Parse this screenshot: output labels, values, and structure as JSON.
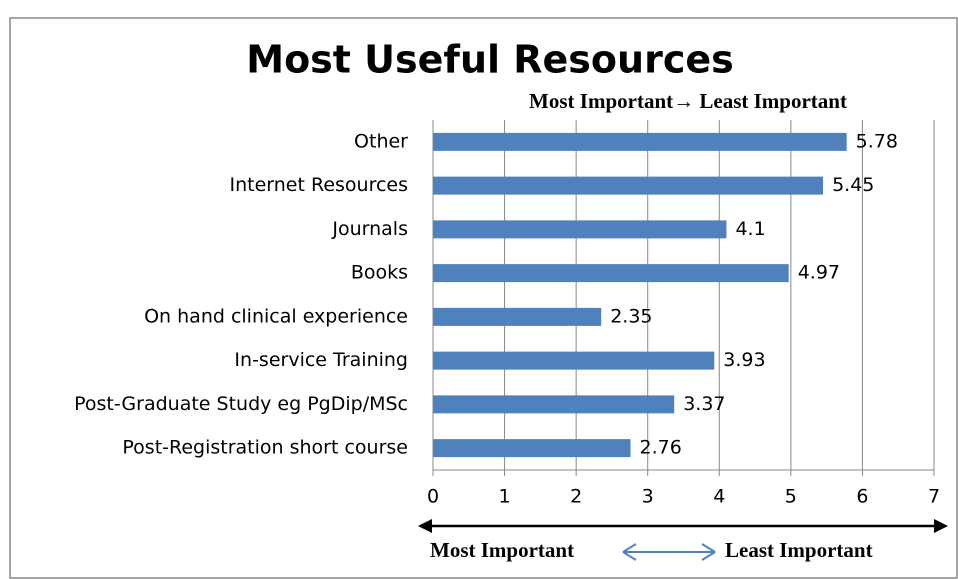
{
  "chart_data": {
    "type": "bar",
    "orientation": "horizontal",
    "title": "Most Useful Resources",
    "subtitle": "Most Important→ Least Important",
    "categories": [
      "Other",
      "Internet Resources",
      "Journals",
      "Books",
      "On hand clinical experience",
      "In-service Training",
      "Post-Graduate Study eg PgDip/MSc",
      "Post-Registration short course"
    ],
    "values": [
      5.78,
      5.45,
      4.1,
      4.97,
      2.35,
      3.93,
      3.37,
      2.76
    ],
    "color": "#4f81bd",
    "xlim": [
      0,
      7
    ],
    "xticks": [
      0,
      1,
      2,
      3,
      4,
      5,
      6,
      7
    ],
    "grid": true,
    "annotations": [
      "Most Important",
      "Least Important"
    ]
  }
}
